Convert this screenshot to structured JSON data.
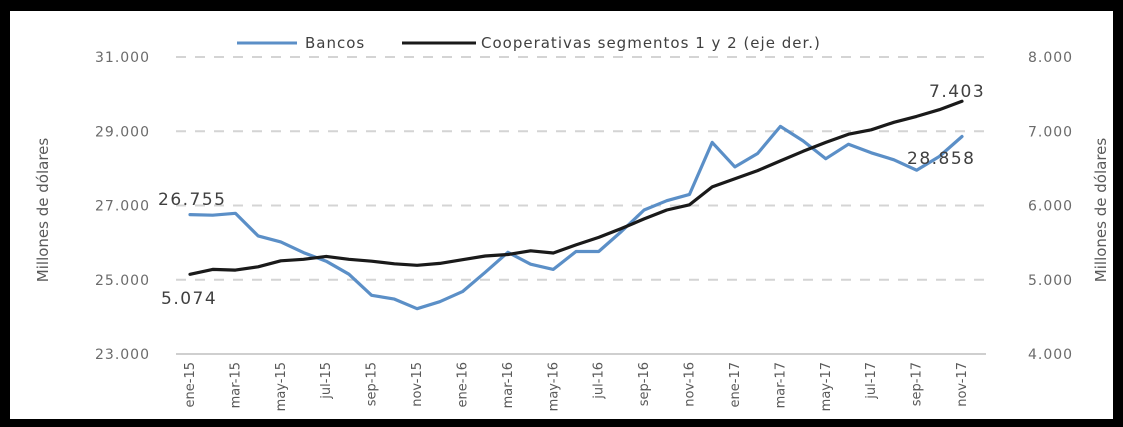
{
  "chart_data": {
    "type": "line",
    "x": [
      "ene-15",
      "feb-15",
      "mar-15",
      "abr-15",
      "may-15",
      "jun-15",
      "jul-15",
      "ago-15",
      "sep-15",
      "oct-15",
      "nov-15",
      "dic-15",
      "ene-16",
      "feb-16",
      "mar-16",
      "abr-16",
      "may-16",
      "jun-16",
      "jul-16",
      "ago-16",
      "sep-16",
      "oct-16",
      "nov-16",
      "dic-16",
      "ene-17",
      "feb-17",
      "mar-17",
      "abr-17",
      "may-17",
      "jun-17",
      "jul-17",
      "ago-17",
      "sep-17",
      "oct-17",
      "nov-17"
    ],
    "x_tick_labels": [
      "ene-15",
      "mar-15",
      "may-15",
      "jul-15",
      "sep-15",
      "nov-15",
      "ene-16",
      "mar-16",
      "may-16",
      "jul-16",
      "sep-16",
      "nov-16",
      "ene-17",
      "mar-17",
      "may-17",
      "jul-17",
      "sep-17",
      "nov-17"
    ],
    "series": [
      {
        "name": "Bancos",
        "axis": "left",
        "color": "#5b8fc7",
        "values": [
          26755,
          26740,
          26790,
          26180,
          26020,
          25730,
          25500,
          25150,
          24580,
          24480,
          24220,
          24410,
          24680,
          25200,
          25740,
          25420,
          25280,
          25760,
          25760,
          26300,
          26880,
          27130,
          27300,
          28700,
          28040,
          28400,
          29130,
          28740,
          28260,
          28650,
          28420,
          28230,
          27950,
          28320,
          28858
        ]
      },
      {
        "name": "Cooperativas segmentos 1 y 2 (eje der.)",
        "axis": "right",
        "color": "#1a1a1a",
        "values": [
          5074,
          5140,
          5130,
          5175,
          5255,
          5275,
          5315,
          5275,
          5250,
          5215,
          5195,
          5220,
          5270,
          5320,
          5340,
          5390,
          5360,
          5470,
          5570,
          5690,
          5820,
          5940,
          6010,
          6250,
          6360,
          6470,
          6600,
          6730,
          6850,
          6960,
          7020,
          7120,
          7200,
          7290,
          7403
        ]
      }
    ],
    "ylim": [
      23000,
      31000
    ],
    "y_ticks": [
      "23.000",
      "25.000",
      "27.000",
      "29.000",
      "31.000"
    ],
    "y2lim": [
      4000,
      8000
    ],
    "y2_ticks": [
      "4.000",
      "5.000",
      "6.000",
      "7.000",
      "8.000"
    ],
    "ylabel": "Millones de dólares",
    "y2label": "Millones de dólares",
    "annotations": {
      "bancos_first": "26.755",
      "bancos_last": "28.858",
      "coop_first": "5.074",
      "coop_last": "7.403"
    },
    "grid": true,
    "legend_position": "top"
  }
}
